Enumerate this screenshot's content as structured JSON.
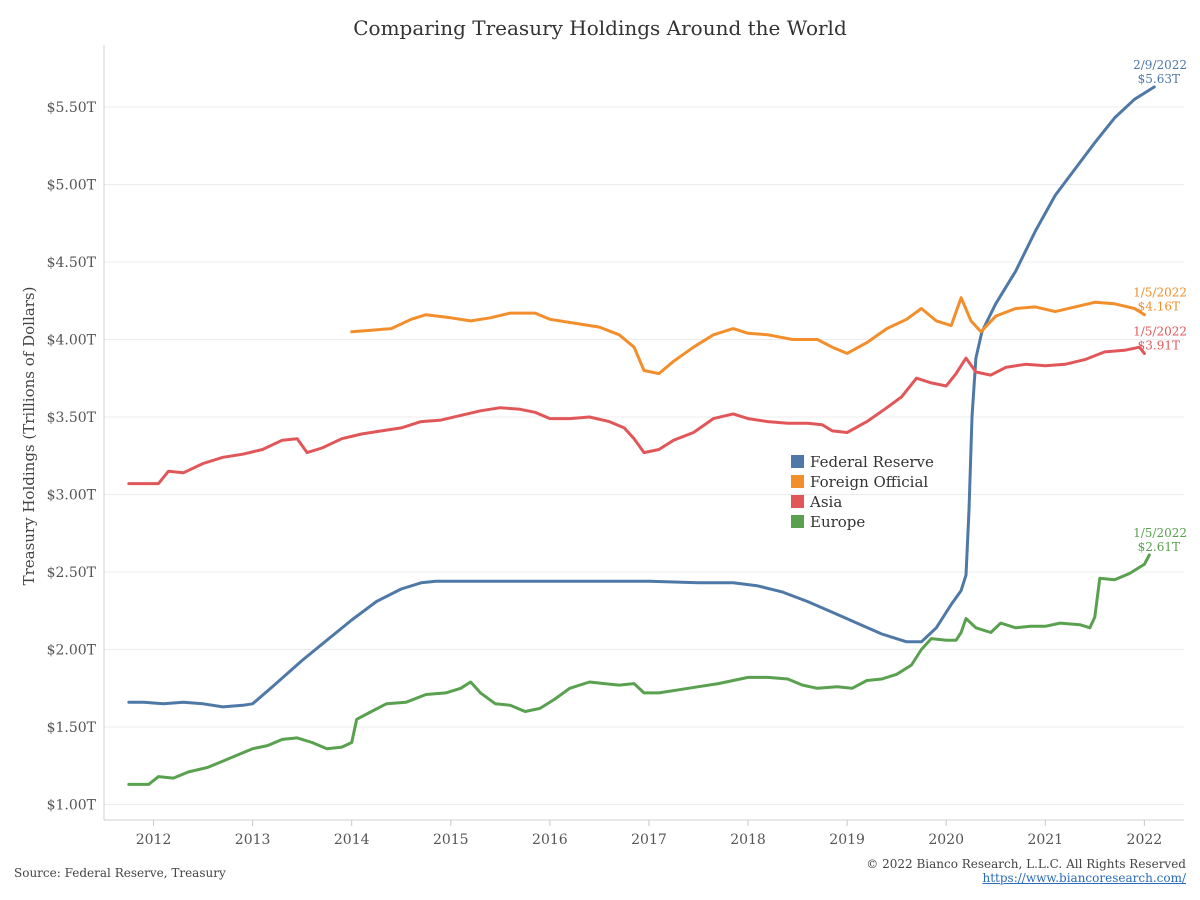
{
  "chart_data": {
    "type": "line",
    "title": "Comparing Treasury Holdings Around the World",
    "ylabel": "Treasury Holdings (Trillions of Dollars)",
    "xlabel": "",
    "xlim": [
      2011.5,
      2022.4
    ],
    "ylim": [
      0.9,
      5.9
    ],
    "x_ticks": [
      2012,
      2013,
      2014,
      2015,
      2016,
      2017,
      2018,
      2019,
      2020,
      2021,
      2022
    ],
    "x_tick_labels": [
      "2012",
      "2013",
      "2014",
      "2015",
      "2016",
      "2017",
      "2018",
      "2019",
      "2020",
      "2021",
      "2022"
    ],
    "y_ticks": [
      1.0,
      1.5,
      2.0,
      2.5,
      3.0,
      3.5,
      4.0,
      4.5,
      5.0,
      5.5
    ],
    "y_tick_labels": [
      "$1.00T",
      "$1.50T",
      "$2.00T",
      "$2.50T",
      "$3.00T",
      "$3.50T",
      "$4.00T",
      "$4.50T",
      "$5.00T",
      "$5.50T"
    ],
    "grid": "horizontal",
    "legend_position": "center",
    "series": [
      {
        "name": "Federal Reserve",
        "color": "#4e79a7",
        "end_label_date": "2/9/2022",
        "end_label_value": "$5.63T",
        "points": [
          [
            2011.75,
            1.66
          ],
          [
            2011.9,
            1.66
          ],
          [
            2012.1,
            1.65
          ],
          [
            2012.3,
            1.66
          ],
          [
            2012.5,
            1.65
          ],
          [
            2012.7,
            1.63
          ],
          [
            2012.9,
            1.64
          ],
          [
            2013.0,
            1.65
          ],
          [
            2013.2,
            1.76
          ],
          [
            2013.5,
            1.93
          ],
          [
            2013.75,
            2.06
          ],
          [
            2014.0,
            2.19
          ],
          [
            2014.25,
            2.31
          ],
          [
            2014.5,
            2.39
          ],
          [
            2014.7,
            2.43
          ],
          [
            2014.85,
            2.44
          ],
          [
            2015.5,
            2.44
          ],
          [
            2016.0,
            2.44
          ],
          [
            2016.5,
            2.44
          ],
          [
            2017.0,
            2.44
          ],
          [
            2017.5,
            2.43
          ],
          [
            2017.85,
            2.43
          ],
          [
            2018.1,
            2.41
          ],
          [
            2018.35,
            2.37
          ],
          [
            2018.6,
            2.31
          ],
          [
            2018.85,
            2.24
          ],
          [
            2019.1,
            2.17
          ],
          [
            2019.35,
            2.1
          ],
          [
            2019.6,
            2.05
          ],
          [
            2019.75,
            2.05
          ],
          [
            2019.9,
            2.14
          ],
          [
            2020.05,
            2.29
          ],
          [
            2020.15,
            2.38
          ],
          [
            2020.2,
            2.48
          ],
          [
            2020.23,
            2.9
          ],
          [
            2020.26,
            3.5
          ],
          [
            2020.3,
            3.88
          ],
          [
            2020.36,
            4.05
          ],
          [
            2020.5,
            4.23
          ],
          [
            2020.7,
            4.44
          ],
          [
            2020.9,
            4.7
          ],
          [
            2021.1,
            4.93
          ],
          [
            2021.3,
            5.1
          ],
          [
            2021.5,
            5.27
          ],
          [
            2021.7,
            5.43
          ],
          [
            2021.9,
            5.55
          ],
          [
            2022.1,
            5.63
          ]
        ]
      },
      {
        "name": "Foreign Official",
        "color": "#f28e2b",
        "end_label_date": "1/5/2022",
        "end_label_value": "$4.16T",
        "points": [
          [
            2014.0,
            4.05
          ],
          [
            2014.2,
            4.06
          ],
          [
            2014.4,
            4.07
          ],
          [
            2014.6,
            4.13
          ],
          [
            2014.75,
            4.16
          ],
          [
            2015.0,
            4.14
          ],
          [
            2015.2,
            4.12
          ],
          [
            2015.4,
            4.14
          ],
          [
            2015.6,
            4.17
          ],
          [
            2015.85,
            4.17
          ],
          [
            2016.0,
            4.13
          ],
          [
            2016.3,
            4.1
          ],
          [
            2016.5,
            4.08
          ],
          [
            2016.7,
            4.03
          ],
          [
            2016.85,
            3.95
          ],
          [
            2016.95,
            3.8
          ],
          [
            2017.1,
            3.78
          ],
          [
            2017.25,
            3.86
          ],
          [
            2017.45,
            3.95
          ],
          [
            2017.65,
            4.03
          ],
          [
            2017.85,
            4.07
          ],
          [
            2018.0,
            4.04
          ],
          [
            2018.2,
            4.03
          ],
          [
            2018.45,
            4.0
          ],
          [
            2018.7,
            4.0
          ],
          [
            2018.85,
            3.95
          ],
          [
            2019.0,
            3.91
          ],
          [
            2019.2,
            3.98
          ],
          [
            2019.4,
            4.07
          ],
          [
            2019.6,
            4.13
          ],
          [
            2019.75,
            4.2
          ],
          [
            2019.9,
            4.12
          ],
          [
            2020.05,
            4.09
          ],
          [
            2020.15,
            4.27
          ],
          [
            2020.25,
            4.12
          ],
          [
            2020.35,
            4.05
          ],
          [
            2020.5,
            4.15
          ],
          [
            2020.7,
            4.2
          ],
          [
            2020.9,
            4.21
          ],
          [
            2021.1,
            4.18
          ],
          [
            2021.3,
            4.21
          ],
          [
            2021.5,
            4.24
          ],
          [
            2021.7,
            4.23
          ],
          [
            2021.9,
            4.2
          ],
          [
            2022.0,
            4.16
          ]
        ]
      },
      {
        "name": "Asia",
        "color": "#e15759",
        "end_label_date": "1/5/2022",
        "end_label_value": "$3.91T",
        "points": [
          [
            2011.75,
            3.07
          ],
          [
            2012.05,
            3.07
          ],
          [
            2012.15,
            3.15
          ],
          [
            2012.3,
            3.14
          ],
          [
            2012.5,
            3.2
          ],
          [
            2012.7,
            3.24
          ],
          [
            2012.9,
            3.26
          ],
          [
            2013.1,
            3.29
          ],
          [
            2013.3,
            3.35
          ],
          [
            2013.45,
            3.36
          ],
          [
            2013.55,
            3.27
          ],
          [
            2013.7,
            3.3
          ],
          [
            2013.9,
            3.36
          ],
          [
            2014.1,
            3.39
          ],
          [
            2014.3,
            3.41
          ],
          [
            2014.5,
            3.43
          ],
          [
            2014.7,
            3.47
          ],
          [
            2014.9,
            3.48
          ],
          [
            2015.1,
            3.51
          ],
          [
            2015.3,
            3.54
          ],
          [
            2015.5,
            3.56
          ],
          [
            2015.7,
            3.55
          ],
          [
            2015.85,
            3.53
          ],
          [
            2016.0,
            3.49
          ],
          [
            2016.2,
            3.49
          ],
          [
            2016.4,
            3.5
          ],
          [
            2016.6,
            3.47
          ],
          [
            2016.75,
            3.43
          ],
          [
            2016.85,
            3.36
          ],
          [
            2016.95,
            3.27
          ],
          [
            2017.1,
            3.29
          ],
          [
            2017.25,
            3.35
          ],
          [
            2017.45,
            3.4
          ],
          [
            2017.65,
            3.49
          ],
          [
            2017.85,
            3.52
          ],
          [
            2018.0,
            3.49
          ],
          [
            2018.2,
            3.47
          ],
          [
            2018.4,
            3.46
          ],
          [
            2018.6,
            3.46
          ],
          [
            2018.75,
            3.45
          ],
          [
            2018.85,
            3.41
          ],
          [
            2019.0,
            3.4
          ],
          [
            2019.2,
            3.47
          ],
          [
            2019.4,
            3.56
          ],
          [
            2019.55,
            3.63
          ],
          [
            2019.7,
            3.75
          ],
          [
            2019.85,
            3.72
          ],
          [
            2020.0,
            3.7
          ],
          [
            2020.1,
            3.78
          ],
          [
            2020.2,
            3.88
          ],
          [
            2020.3,
            3.79
          ],
          [
            2020.45,
            3.77
          ],
          [
            2020.6,
            3.82
          ],
          [
            2020.8,
            3.84
          ],
          [
            2021.0,
            3.83
          ],
          [
            2021.2,
            3.84
          ],
          [
            2021.4,
            3.87
          ],
          [
            2021.6,
            3.92
          ],
          [
            2021.8,
            3.93
          ],
          [
            2021.95,
            3.95
          ],
          [
            2022.0,
            3.91
          ]
        ]
      },
      {
        "name": "Europe",
        "color": "#59a14f",
        "end_label_date": "1/5/2022",
        "end_label_value": "$2.61T",
        "points": [
          [
            2011.75,
            1.13
          ],
          [
            2011.95,
            1.13
          ],
          [
            2012.05,
            1.18
          ],
          [
            2012.2,
            1.17
          ],
          [
            2012.35,
            1.21
          ],
          [
            2012.55,
            1.24
          ],
          [
            2012.7,
            1.28
          ],
          [
            2012.85,
            1.32
          ],
          [
            2013.0,
            1.36
          ],
          [
            2013.15,
            1.38
          ],
          [
            2013.3,
            1.42
          ],
          [
            2013.45,
            1.43
          ],
          [
            2013.6,
            1.4
          ],
          [
            2013.75,
            1.36
          ],
          [
            2013.9,
            1.37
          ],
          [
            2014.0,
            1.4
          ],
          [
            2014.05,
            1.55
          ],
          [
            2014.2,
            1.6
          ],
          [
            2014.35,
            1.65
          ],
          [
            2014.55,
            1.66
          ],
          [
            2014.75,
            1.71
          ],
          [
            2014.95,
            1.72
          ],
          [
            2015.1,
            1.75
          ],
          [
            2015.2,
            1.79
          ],
          [
            2015.3,
            1.72
          ],
          [
            2015.45,
            1.65
          ],
          [
            2015.6,
            1.64
          ],
          [
            2015.75,
            1.6
          ],
          [
            2015.9,
            1.62
          ],
          [
            2016.05,
            1.68
          ],
          [
            2016.2,
            1.75
          ],
          [
            2016.4,
            1.79
          ],
          [
            2016.55,
            1.78
          ],
          [
            2016.7,
            1.77
          ],
          [
            2016.85,
            1.78
          ],
          [
            2016.95,
            1.72
          ],
          [
            2017.1,
            1.72
          ],
          [
            2017.3,
            1.74
          ],
          [
            2017.5,
            1.76
          ],
          [
            2017.7,
            1.78
          ],
          [
            2017.85,
            1.8
          ],
          [
            2018.0,
            1.82
          ],
          [
            2018.2,
            1.82
          ],
          [
            2018.4,
            1.81
          ],
          [
            2018.55,
            1.77
          ],
          [
            2018.7,
            1.75
          ],
          [
            2018.9,
            1.76
          ],
          [
            2019.05,
            1.75
          ],
          [
            2019.2,
            1.8
          ],
          [
            2019.35,
            1.81
          ],
          [
            2019.5,
            1.84
          ],
          [
            2019.65,
            1.9
          ],
          [
            2019.75,
            2.0
          ],
          [
            2019.85,
            2.07
          ],
          [
            2020.0,
            2.06
          ],
          [
            2020.1,
            2.06
          ],
          [
            2020.15,
            2.11
          ],
          [
            2020.2,
            2.2
          ],
          [
            2020.3,
            2.14
          ],
          [
            2020.45,
            2.11
          ],
          [
            2020.55,
            2.17
          ],
          [
            2020.7,
            2.14
          ],
          [
            2020.85,
            2.15
          ],
          [
            2021.0,
            2.15
          ],
          [
            2021.15,
            2.17
          ],
          [
            2021.35,
            2.16
          ],
          [
            2021.45,
            2.14
          ],
          [
            2021.5,
            2.21
          ],
          [
            2021.55,
            2.46
          ],
          [
            2021.7,
            2.45
          ],
          [
            2021.85,
            2.49
          ],
          [
            2022.0,
            2.55
          ],
          [
            2022.05,
            2.61
          ]
        ]
      }
    ]
  },
  "footer": {
    "source": "Source: Federal Reserve, Treasury",
    "copyright": "© 2022 Bianco Research, L.L.C. All Rights Reserved",
    "url": "https://www.biancoresearch.com/"
  }
}
